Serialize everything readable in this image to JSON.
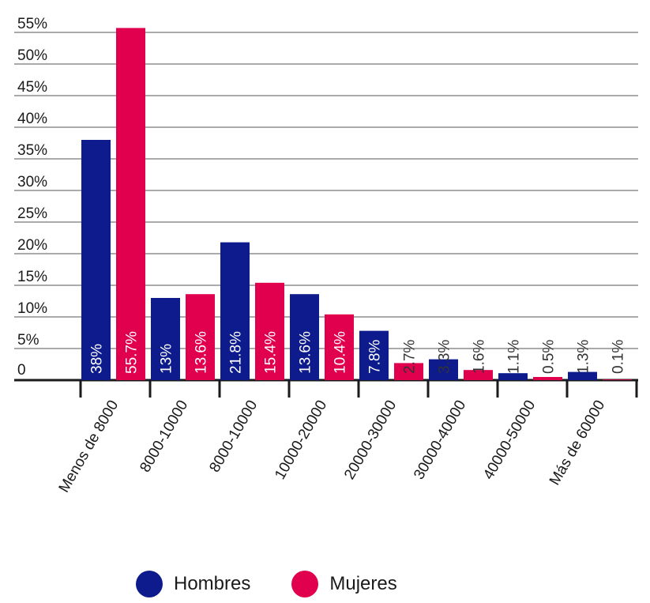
{
  "chart_data": {
    "type": "bar",
    "categories": [
      "Menos de 8000",
      "8000-10000",
      "8000-10000",
      "10000-20000",
      "20000-30000",
      "30000-40000",
      "40000-50000",
      "Más de 60000"
    ],
    "series": [
      {
        "name": "Hombres",
        "color": "#0d1b8c",
        "values": [
          38,
          13,
          21.8,
          13.6,
          7.8,
          3.3,
          1.1,
          1.3
        ],
        "labels": [
          "38%",
          "13%",
          "21.8%",
          "13.6%",
          "7.8%",
          "3.3%",
          "1.1%",
          "1.3%"
        ]
      },
      {
        "name": "Mujeres",
        "color": "#e0004d",
        "values": [
          55.7,
          13.6,
          15.4,
          10.4,
          2.7,
          1.6,
          0.5,
          0.1
        ],
        "labels": [
          "55.7%",
          "13.6%",
          "15.4%",
          "10.4%",
          "2.7%",
          "1.6%",
          "0.5%",
          "0.1%"
        ]
      }
    ],
    "y_ticks": [
      "0",
      "5%",
      "10%",
      "15%",
      "20%",
      "25%",
      "30%",
      "35%",
      "40%",
      "45%",
      "50%",
      "55%"
    ],
    "ylim": [
      0,
      55
    ],
    "grid": true,
    "legend_position": "bottom"
  }
}
